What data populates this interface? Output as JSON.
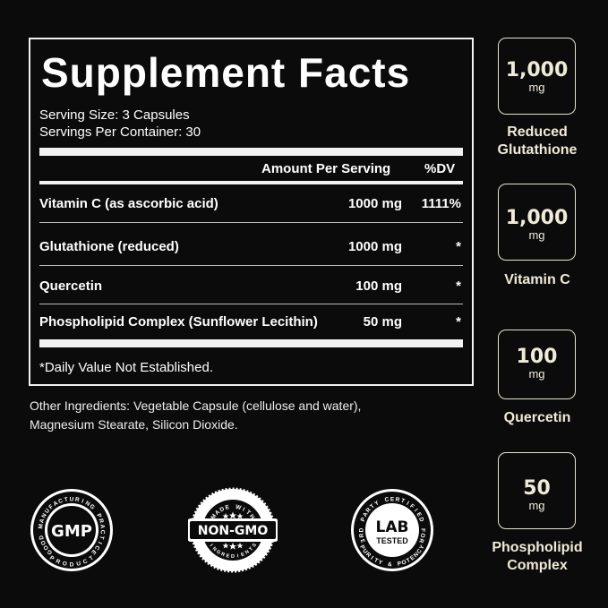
{
  "facts": {
    "title": "Supplement Facts",
    "serving_size": "Serving Size: 3 Capsules",
    "servings_per_container": "Servings Per Container: 30",
    "header_amount": "Amount Per Serving",
    "header_dv": "%DV",
    "rows": [
      {
        "name": "Vitamin C (as ascorbic acid)",
        "amount": "1000 mg",
        "dv": "1111%"
      },
      {
        "name": "Glutathione (reduced)",
        "amount": "1000 mg",
        "dv": "*"
      },
      {
        "name": "Quercetin",
        "amount": "100 mg",
        "dv": "*"
      },
      {
        "name": "Phospholipid Complex (Sunflower Lecithin)",
        "amount": "50 mg",
        "dv": "*"
      }
    ],
    "footnote": "*Daily Value Not Established."
  },
  "other_ingredients": {
    "line1": "Other Ingredients: Vegetable Capsule (cellulose and water),",
    "line2": "Magnesium Stearate, Silicon Dioxide."
  },
  "highlights": [
    {
      "value": "1,000",
      "unit": "mg",
      "label1": "Reduced",
      "label2": "Glutathione"
    },
    {
      "value": "1,000",
      "unit": "mg",
      "label1": "Vitamin C",
      "label2": ""
    },
    {
      "value": "100",
      "unit": "mg",
      "label1": "Quercetin",
      "label2": ""
    },
    {
      "value": "50",
      "unit": "mg",
      "label1": "Phospholipid",
      "label2": "Complex"
    }
  ],
  "badges": {
    "gmp": {
      "center": "GMP",
      "ring_top": "GOOD MANUFACTURING PRACTICE",
      "ring_bottom": "PRODUCT"
    },
    "nongmo": {
      "top": "MADE WITH",
      "center": "NON-GMO",
      "bottom": "INGREDIENTS"
    },
    "lab": {
      "center1": "LAB",
      "center2": "TESTED",
      "ring_top": "3RD PARTY CERTIFIED FOR",
      "ring_bottom": "PURITY & POTENCY"
    }
  },
  "colors": {
    "background": "#0b0b0b",
    "accent": "#f0ead8"
  }
}
